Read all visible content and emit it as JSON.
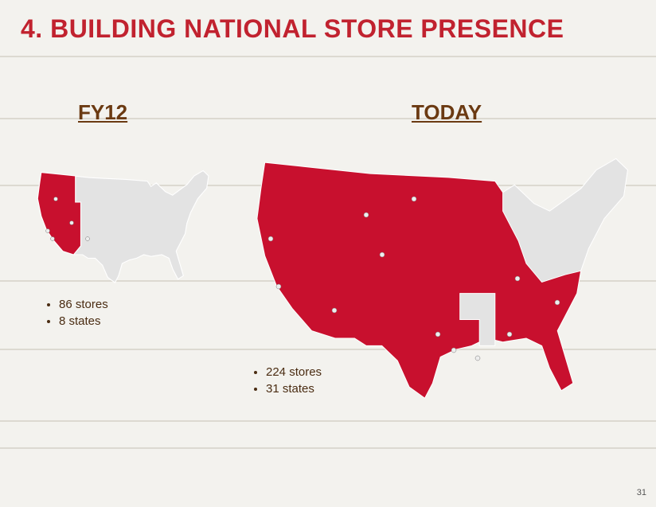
{
  "title": "4. BUILDING NATIONAL STORE PRESENCE",
  "panels": [
    {
      "heading": "FY12",
      "bullets": [
        "86 stores",
        "8 states"
      ]
    },
    {
      "heading": "TODAY",
      "bullets": [
        "224 stores",
        "31 states"
      ]
    }
  ],
  "page_number": "31"
}
